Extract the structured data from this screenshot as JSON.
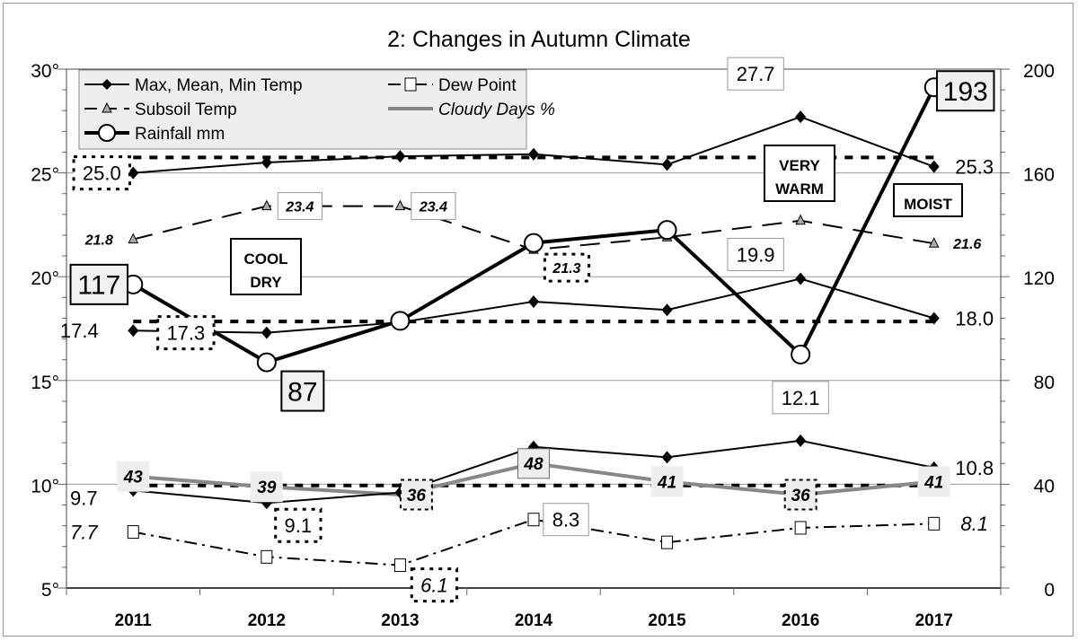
{
  "chart_data": {
    "type": "line",
    "title": "2: Changes in Autumn Climate",
    "categories": [
      "2011",
      "2012",
      "2013",
      "2014",
      "2015",
      "2016",
      "2017"
    ],
    "y_left": {
      "range": [
        5,
        30
      ],
      "ticks": [
        "5°",
        "10°",
        "15°",
        "20°",
        "25°",
        "30°"
      ]
    },
    "y_right": {
      "range": [
        0,
        200
      ],
      "ticks": [
        "0",
        "40",
        "80",
        "120",
        "160",
        "200"
      ]
    },
    "grid": true,
    "legend_placement": "top-left",
    "legend": [
      "Max, Mean, Min Temp",
      "Dew Point",
      "Subsoil Temp",
      "Cloudy Days %",
      "Rainfall mm"
    ],
    "series": [
      {
        "name": "Max Temp",
        "legend": "Max, Mean, Min Temp",
        "axis": "left",
        "values": [
          25.0,
          25.5,
          25.8,
          25.9,
          25.4,
          27.7,
          25.3
        ]
      },
      {
        "name": "Mean Temp",
        "legend": "Max, Mean, Min Temp",
        "axis": "left",
        "values": [
          17.4,
          17.3,
          17.8,
          18.8,
          18.4,
          19.9,
          18.0
        ]
      },
      {
        "name": "Min Temp",
        "legend": "Max, Mean, Min Temp",
        "axis": "left",
        "values": [
          9.7,
          9.1,
          9.6,
          11.8,
          11.3,
          12.1,
          10.8
        ]
      },
      {
        "name": "Dew Point",
        "axis": "left",
        "values": [
          7.7,
          6.5,
          6.1,
          8.3,
          7.2,
          7.9,
          8.1
        ]
      },
      {
        "name": "Subsoil Temp",
        "axis": "left",
        "values": [
          21.8,
          23.4,
          23.4,
          21.3,
          21.9,
          22.7,
          21.6
        ]
      },
      {
        "name": "Rainfall mm",
        "axis": "right",
        "values": [
          117,
          87,
          103,
          133,
          138,
          90,
          193
        ]
      },
      {
        "name": "Cloudy Days %",
        "axis": "right",
        "values": [
          43,
          39,
          36,
          48,
          41,
          36,
          41
        ]
      }
    ],
    "averages": {
      "max": 25.7,
      "mean": 17.8,
      "min": 9.9
    },
    "data_labels": {
      "max": [
        "25.0",
        "",
        "",
        "",
        "",
        "27.7",
        "25.3"
      ],
      "mean": [
        "17.4",
        "17.3",
        "",
        "",
        "",
        "19.9",
        "18.0"
      ],
      "min": [
        "9.7",
        "9.1",
        "",
        "",
        "",
        "12.1",
        "10.8"
      ],
      "dew": [
        "7.7",
        "",
        "6.1",
        "8.3",
        "",
        "",
        "8.1"
      ],
      "subsoil": [
        "21.8",
        "23.4",
        "23.4",
        "21.3",
        "",
        "",
        "21.6"
      ],
      "rain": [
        "117",
        "87",
        "",
        "",
        "",
        "",
        "193"
      ],
      "cloudy": [
        "43",
        "39",
        "36",
        "48",
        "41",
        "36",
        "41"
      ]
    },
    "annotations": [
      "COOL\nDRY",
      "VERY\nWARM",
      "MOIST"
    ],
    "colors": {
      "temp": "#000000",
      "cloudy": "#888888",
      "subsoil_marker": "#aaaaaa",
      "legend_bg": "#eeeeee"
    }
  }
}
